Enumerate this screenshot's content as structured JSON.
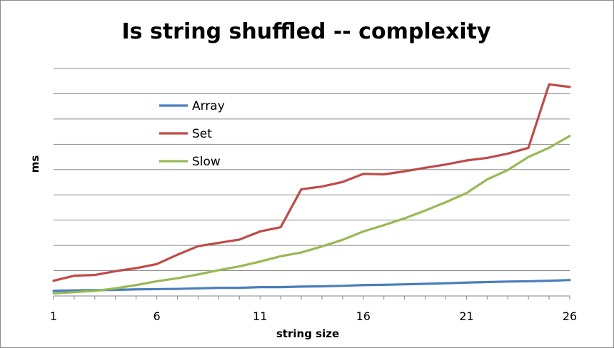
{
  "chart_data": {
    "type": "line",
    "title": "Is string shuffled -- complexity",
    "xlabel": "string size",
    "ylabel": "ms",
    "x": [
      1,
      2,
      3,
      4,
      5,
      6,
      7,
      8,
      9,
      10,
      11,
      12,
      13,
      14,
      15,
      16,
      17,
      18,
      19,
      20,
      21,
      22,
      23,
      24,
      25,
      26
    ],
    "x_ticks": [
      1,
      6,
      11,
      16,
      21,
      26
    ],
    "ylim": [
      0,
      9
    ],
    "y_gridlines": 9,
    "y_tick_labels_shown": false,
    "grid": true,
    "legend_position": "upper-left inside plot",
    "series": [
      {
        "name": "Array",
        "color": "#4a7ebb",
        "values": [
          0.2,
          0.22,
          0.23,
          0.24,
          0.26,
          0.27,
          0.28,
          0.3,
          0.32,
          0.32,
          0.35,
          0.35,
          0.37,
          0.38,
          0.4,
          0.43,
          0.44,
          0.46,
          0.48,
          0.5,
          0.53,
          0.55,
          0.57,
          0.58,
          0.6,
          0.63
        ]
      },
      {
        "name": "Set",
        "color": "#be4b48",
        "values": [
          0.6,
          0.8,
          0.83,
          0.98,
          1.1,
          1.26,
          1.63,
          1.97,
          2.1,
          2.23,
          2.55,
          2.72,
          4.22,
          4.33,
          4.51,
          4.83,
          4.81,
          4.93,
          5.07,
          5.2,
          5.36,
          5.46,
          5.63,
          5.86,
          8.37,
          8.27
        ]
      },
      {
        "name": "Slow",
        "color": "#98b954",
        "values": [
          0.1,
          0.15,
          0.2,
          0.3,
          0.43,
          0.58,
          0.7,
          0.85,
          1.02,
          1.17,
          1.36,
          1.57,
          1.72,
          1.96,
          2.22,
          2.55,
          2.8,
          3.07,
          3.38,
          3.71,
          4.07,
          4.61,
          4.98,
          5.5,
          5.86,
          6.33
        ]
      }
    ]
  }
}
